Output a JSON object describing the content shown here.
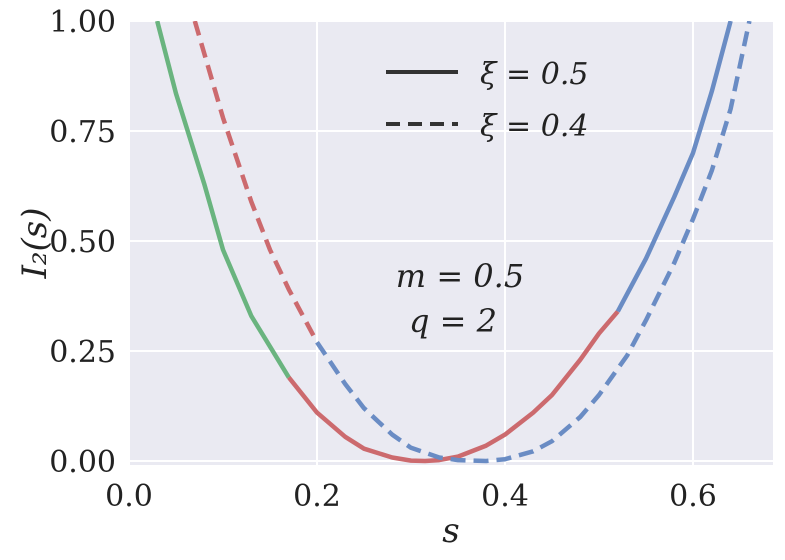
{
  "chart_data": {
    "type": "line",
    "title": "",
    "xlabel": "s",
    "ylabel": "I₂(s)",
    "xlim": [
      0.0,
      0.69
    ],
    "ylim": [
      0.0,
      1.0
    ],
    "x_ticks": [
      "0.0",
      "0.2",
      "0.4",
      "0.6"
    ],
    "y_ticks": [
      "0.00",
      "0.25",
      "0.50",
      "0.75",
      "1.00"
    ],
    "grid": true,
    "legend_position": "top-center",
    "legend": [
      {
        "label": "ξ = 0.5",
        "linestyle": "solid"
      },
      {
        "label": "ξ = 0.4",
        "linestyle": "dashed"
      }
    ],
    "annotations": [
      "m = 0.5",
      "q = 2"
    ],
    "colors": {
      "green": "#6ab47f",
      "red": "#cc6a6e",
      "blue": "#6a8cc4",
      "background": "#eaeaf2",
      "grid": "#ffffff"
    },
    "series": [
      {
        "name": "ξ = 0.5",
        "linestyle": "solid",
        "segment_colors": [
          "green",
          "red",
          "blue"
        ],
        "segment_breaks": [
          0.17,
          0.52
        ],
        "x": [
          0.03,
          0.05,
          0.08,
          0.1,
          0.13,
          0.15,
          0.17,
          0.2,
          0.23,
          0.25,
          0.28,
          0.3,
          0.315,
          0.33,
          0.35,
          0.38,
          0.4,
          0.43,
          0.45,
          0.48,
          0.5,
          0.52,
          0.55,
          0.58,
          0.6,
          0.62,
          0.64
        ],
        "y": [
          1.0,
          0.835,
          0.63,
          0.48,
          0.33,
          0.26,
          0.19,
          0.11,
          0.055,
          0.028,
          0.008,
          0.001,
          0.0,
          0.002,
          0.01,
          0.035,
          0.06,
          0.11,
          0.15,
          0.23,
          0.29,
          0.34,
          0.46,
          0.6,
          0.7,
          0.84,
          1.0
        ]
      },
      {
        "name": "ξ = 0.4",
        "linestyle": "dashed",
        "segment_colors": [
          "red",
          "blue"
        ],
        "segment_breaks": [
          0.2
        ],
        "x": [
          0.07,
          0.1,
          0.13,
          0.15,
          0.17,
          0.2,
          0.23,
          0.25,
          0.28,
          0.3,
          0.33,
          0.35,
          0.38,
          0.4,
          0.43,
          0.45,
          0.48,
          0.5,
          0.53,
          0.55,
          0.58,
          0.6,
          0.62,
          0.64,
          0.66
        ],
        "y": [
          1.0,
          0.78,
          0.59,
          0.48,
          0.39,
          0.27,
          0.175,
          0.12,
          0.06,
          0.03,
          0.008,
          0.002,
          0.0,
          0.004,
          0.022,
          0.045,
          0.1,
          0.15,
          0.24,
          0.32,
          0.45,
          0.55,
          0.66,
          0.8,
          1.0
        ]
      }
    ]
  }
}
